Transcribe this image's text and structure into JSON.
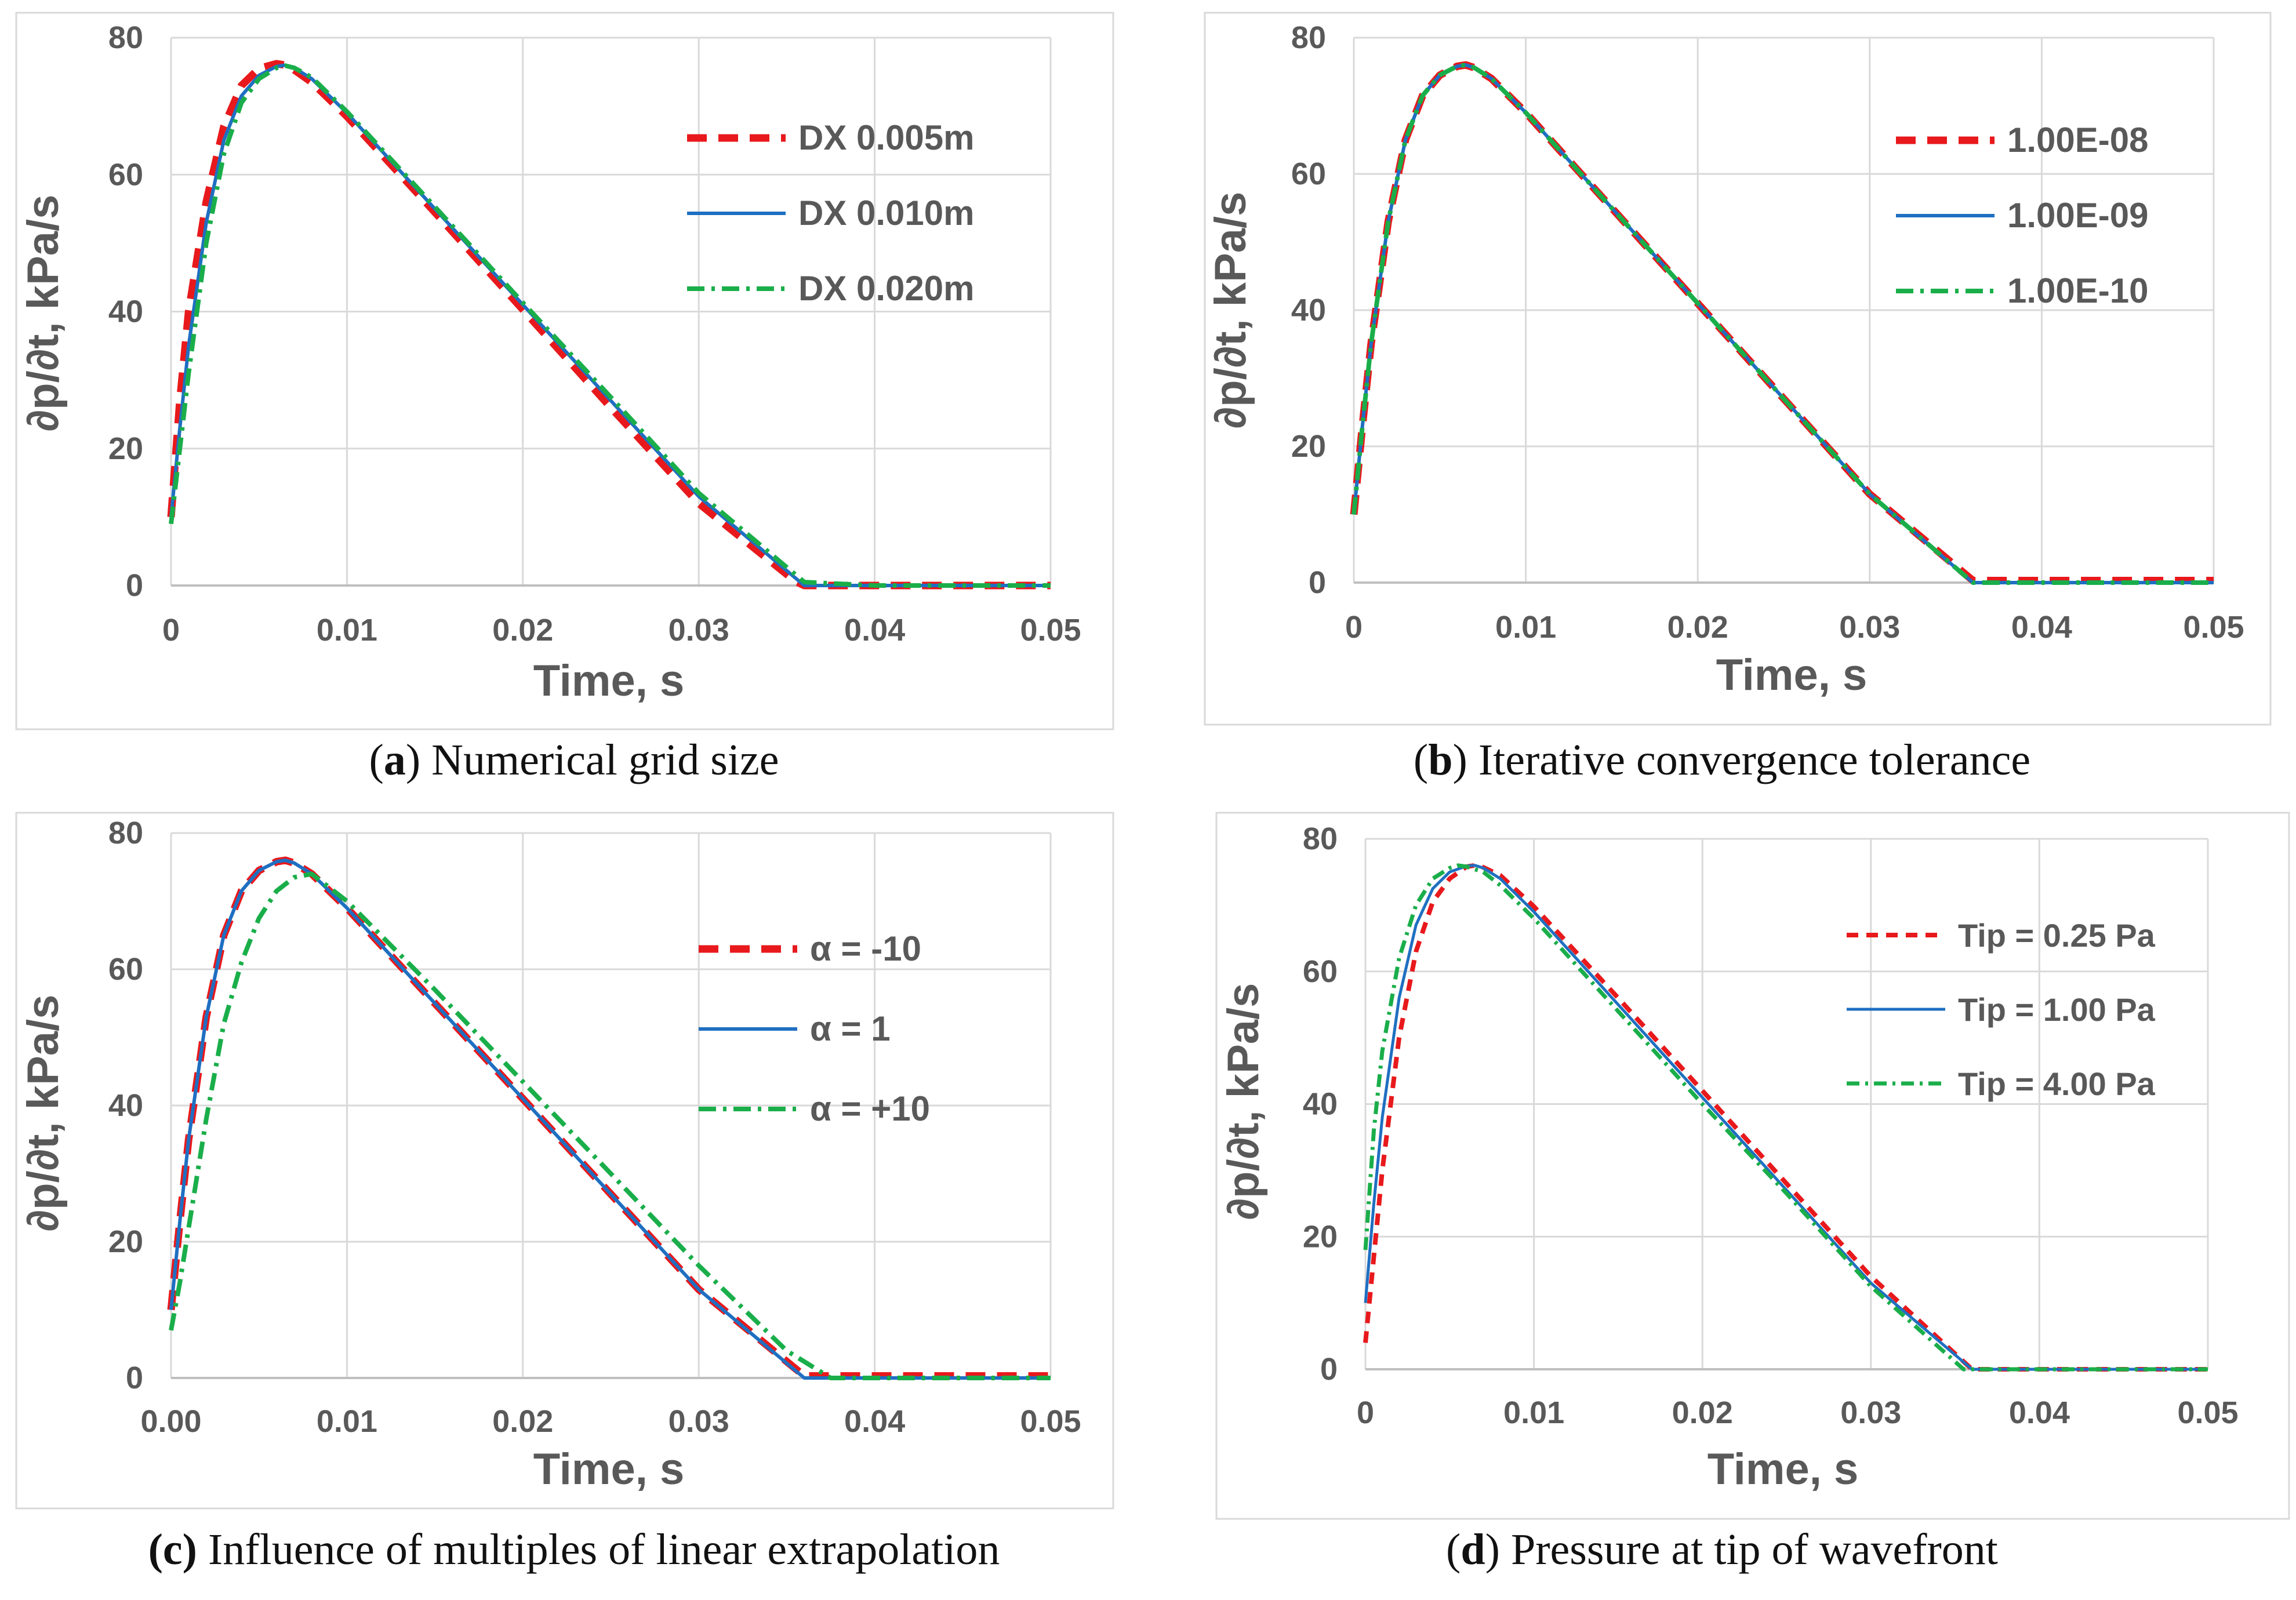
{
  "colors": {
    "red": "#e8191c",
    "blue": "#1f6fc1",
    "green": "#1aae4a",
    "axis_text": "#595959",
    "grid": "#d9d9d9",
    "border": "#d9d9d9"
  },
  "axis_labels": {
    "ylabel": "∂p/∂t, kPa/s",
    "xlabel": "Time, s"
  },
  "panels": [
    {
      "letter": "a",
      "caption_open": "(",
      "caption_close": ")",
      "caption_text": "Numerical grid size"
    },
    {
      "letter": "b",
      "caption_open": "(",
      "caption_close": ")",
      "caption_text": "Iterative convergence tolerance"
    },
    {
      "letter": "(c)",
      "caption_open": "",
      "caption_close": "",
      "caption_text": "Influence of multiples of linear extrapolation"
    },
    {
      "letter": "d",
      "caption_open": "(",
      "caption_close": ")",
      "caption_text": "Pressure at tip of wavefront"
    }
  ],
  "chart_data": [
    {
      "type": "line",
      "title": "(a) Numerical grid size",
      "xlabel": "Time, s",
      "ylabel": "∂p/∂t, kPa/s",
      "xlim": [
        0,
        0.05
      ],
      "ylim": [
        0,
        80
      ],
      "xticks": [
        "0",
        "0.01",
        "0.02",
        "0.03",
        "0.04",
        "0.05"
      ],
      "yticks": [
        "0",
        "20",
        "40",
        "60",
        "80"
      ],
      "legend_position": "top-right",
      "series": [
        {
          "name": "DX 0.005m",
          "style": "dash",
          "color": "#e8191c",
          "x": [
            0,
            0.0005,
            0.001,
            0.002,
            0.003,
            0.004,
            0.005,
            0.006,
            0.0065,
            0.007,
            0.008,
            0.01,
            0.015,
            0.02,
            0.025,
            0.03,
            0.0355,
            0.036,
            0.04,
            0.05
          ],
          "y": [
            10,
            27,
            40,
            56,
            67,
            73,
            75.5,
            76.2,
            76,
            75.3,
            73.5,
            68.5,
            54.5,
            40.3,
            26,
            12,
            0.6,
            0,
            0,
            0
          ]
        },
        {
          "name": "DX 0.010m",
          "style": "solid",
          "color": "#1f6fc1",
          "x": [
            0,
            0.0005,
            0.001,
            0.002,
            0.003,
            0.004,
            0.005,
            0.006,
            0.0065,
            0.007,
            0.008,
            0.01,
            0.015,
            0.02,
            0.025,
            0.03,
            0.036,
            0.04,
            0.05
          ],
          "y": [
            10,
            23,
            35,
            53,
            65,
            71.5,
            74.5,
            75.8,
            76,
            75.6,
            74,
            69,
            55,
            41,
            27,
            13,
            0,
            0,
            0
          ]
        },
        {
          "name": "DX 0.020m",
          "style": "dashdot",
          "color": "#1aae4a",
          "x": [
            0,
            0.0005,
            0.001,
            0.002,
            0.003,
            0.004,
            0.005,
            0.006,
            0.0065,
            0.007,
            0.008,
            0.01,
            0.015,
            0.02,
            0.025,
            0.03,
            0.036,
            0.04,
            0.05
          ],
          "y": [
            9,
            20,
            31,
            50,
            63,
            70.5,
            74,
            75.6,
            75.9,
            75.6,
            74.2,
            69.2,
            55.3,
            41.3,
            27.5,
            13.5,
            0.5,
            0,
            0
          ]
        }
      ]
    },
    {
      "type": "line",
      "title": "(b) Iterative convergence tolerance",
      "xlabel": "Time, s",
      "ylabel": "∂p/∂t, kPa/s",
      "xlim": [
        0,
        0.05
      ],
      "ylim": [
        0,
        80
      ],
      "xticks": [
        "0",
        "0.01",
        "0.02",
        "0.03",
        "0.04",
        "0.05"
      ],
      "yticks": [
        "0",
        "20",
        "40",
        "60",
        "80"
      ],
      "legend_position": "top-right",
      "series": [
        {
          "name": "1.00E-08",
          "style": "dash",
          "color": "#e8191c",
          "x": [
            0,
            0.0005,
            0.001,
            0.002,
            0.003,
            0.004,
            0.005,
            0.006,
            0.0065,
            0.007,
            0.008,
            0.01,
            0.015,
            0.02,
            0.025,
            0.03,
            0.036,
            0.04,
            0.05
          ],
          "y": [
            10,
            23,
            35,
            53,
            65,
            71.5,
            74.5,
            75.8,
            76,
            75.6,
            74,
            69,
            55,
            41,
            27,
            13,
            0.3,
            0.3,
            0.3
          ]
        },
        {
          "name": "1.00E-09",
          "style": "solid",
          "color": "#1f6fc1",
          "x": [
            0,
            0.0005,
            0.001,
            0.002,
            0.003,
            0.004,
            0.005,
            0.006,
            0.0065,
            0.007,
            0.008,
            0.01,
            0.015,
            0.02,
            0.025,
            0.03,
            0.036,
            0.04,
            0.05
          ],
          "y": [
            10,
            23,
            35,
            53,
            65,
            71.5,
            74.5,
            75.8,
            76,
            75.6,
            74,
            69,
            55,
            41,
            27,
            13,
            0,
            0,
            0
          ]
        },
        {
          "name": "1.00E-10",
          "style": "dashdot",
          "color": "#1aae4a",
          "x": [
            0,
            0.0005,
            0.001,
            0.002,
            0.003,
            0.004,
            0.005,
            0.006,
            0.0065,
            0.007,
            0.008,
            0.01,
            0.015,
            0.02,
            0.025,
            0.03,
            0.036,
            0.04,
            0.05
          ],
          "y": [
            10,
            23,
            35,
            53,
            65,
            71.5,
            74.5,
            75.8,
            76,
            75.6,
            74,
            69,
            55,
            41,
            27,
            13,
            0,
            0,
            0
          ]
        }
      ]
    },
    {
      "type": "line",
      "title": "(c) Influence of multiples of linear extrapolation",
      "xlabel": "Time, s",
      "ylabel": "∂p/∂t, kPa/s",
      "xlim": [
        0,
        0.05
      ],
      "ylim": [
        0,
        80
      ],
      "xticks": [
        "0.00",
        "0.01",
        "0.02",
        "0.03",
        "0.04",
        "0.05"
      ],
      "yticks": [
        "0",
        "20",
        "40",
        "60",
        "80"
      ],
      "legend_position": "center-right",
      "series": [
        {
          "name": "α = -10",
          "style": "dash",
          "color": "#e8191c",
          "x": [
            0,
            0.0005,
            0.001,
            0.002,
            0.003,
            0.004,
            0.005,
            0.006,
            0.0065,
            0.007,
            0.008,
            0.01,
            0.015,
            0.02,
            0.025,
            0.03,
            0.036,
            0.04,
            0.05
          ],
          "y": [
            10,
            23,
            35,
            53,
            65,
            71.5,
            74.5,
            75.8,
            76,
            75.6,
            74,
            69,
            55,
            41,
            27,
            13,
            0.3,
            0.3,
            0.3
          ]
        },
        {
          "name": "α = 1",
          "style": "solid",
          "color": "#1f6fc1",
          "x": [
            0,
            0.0005,
            0.001,
            0.002,
            0.003,
            0.004,
            0.005,
            0.006,
            0.0065,
            0.007,
            0.008,
            0.01,
            0.015,
            0.02,
            0.025,
            0.03,
            0.036,
            0.04,
            0.05
          ],
          "y": [
            10,
            23,
            35,
            53,
            65,
            71.5,
            74.5,
            75.8,
            76,
            75.6,
            74,
            69,
            55,
            41,
            27,
            13,
            0,
            0,
            0
          ]
        },
        {
          "name": "α = +10",
          "style": "dashdot",
          "color": "#1aae4a",
          "x": [
            0,
            0.0005,
            0.001,
            0.002,
            0.003,
            0.004,
            0.005,
            0.006,
            0.007,
            0.008,
            0.01,
            0.015,
            0.02,
            0.025,
            0.03,
            0.035,
            0.0375,
            0.04,
            0.05
          ],
          "y": [
            7,
            14,
            22,
            38,
            52,
            61,
            67.5,
            71.5,
            73.5,
            74,
            70,
            57,
            43.5,
            30,
            16.5,
            4,
            0,
            0,
            0
          ]
        }
      ]
    },
    {
      "type": "line",
      "title": "(d) Pressure at tip of wavefront",
      "xlabel": "Time, s",
      "ylabel": "∂p/∂t, kPa/s",
      "xlim": [
        0,
        0.05
      ],
      "ylim": [
        0,
        80
      ],
      "xticks": [
        "0",
        "0.01",
        "0.02",
        "0.03",
        "0.04",
        "0.05"
      ],
      "yticks": [
        "0",
        "20",
        "40",
        "60",
        "80"
      ],
      "legend_position": "top-right",
      "series": [
        {
          "name": "Tip = 0.25 Pa",
          "style": "dash",
          "color": "#e8191c",
          "x": [
            0,
            0.0005,
            0.001,
            0.002,
            0.003,
            0.004,
            0.005,
            0.006,
            0.0065,
            0.007,
            0.008,
            0.01,
            0.015,
            0.02,
            0.025,
            0.03,
            0.036,
            0.04,
            0.05
          ],
          "y": [
            4,
            17,
            30,
            50,
            63,
            70.5,
            74,
            75.8,
            76,
            75.7,
            74.5,
            69.8,
            56,
            42,
            28,
            14,
            0,
            0,
            0
          ]
        },
        {
          "name": "Tip = 1.00 Pa",
          "style": "solid",
          "color": "#1f6fc1",
          "x": [
            0,
            0.0005,
            0.001,
            0.002,
            0.003,
            0.004,
            0.005,
            0.006,
            0.0065,
            0.007,
            0.008,
            0.01,
            0.015,
            0.02,
            0.025,
            0.03,
            0.036,
            0.04,
            0.05
          ],
          "y": [
            10,
            25,
            38,
            56,
            67,
            72.5,
            75,
            75.9,
            76,
            75.6,
            74,
            69,
            55,
            41,
            27,
            13,
            0,
            0,
            0
          ]
        },
        {
          "name": "Tip = 4.00 Pa",
          "style": "dashdot",
          "color": "#1aae4a",
          "x": [
            0,
            0.0005,
            0.001,
            0.002,
            0.003,
            0.004,
            0.005,
            0.0055,
            0.006,
            0.007,
            0.008,
            0.01,
            0.015,
            0.02,
            0.025,
            0.03,
            0.0355,
            0.04,
            0.05
          ],
          "y": [
            18,
            36,
            48,
            62,
            70,
            74,
            75.6,
            76,
            75.8,
            75,
            73,
            68,
            54,
            40,
            26.5,
            12.5,
            0,
            0,
            0
          ]
        }
      ]
    }
  ]
}
